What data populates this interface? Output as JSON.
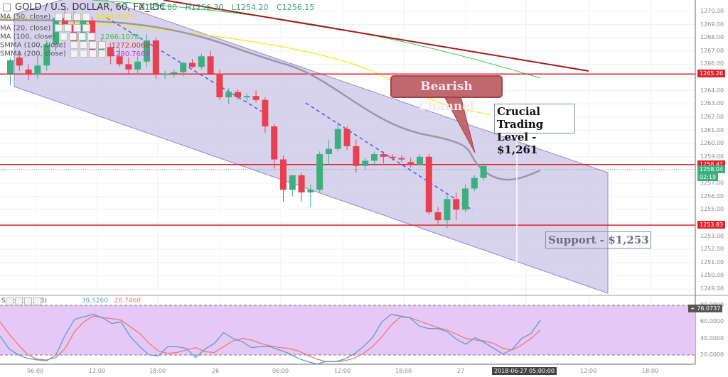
{
  "header": {
    "symbol_title": "GOLD / U.S. DOLLAR, 60, FX_IDC",
    "ohlc": {
      "open": "O1254.80",
      "high": "H1256.30",
      "low": "L1254.20",
      "close": "C1256.15"
    }
  },
  "indicators": [
    {
      "label": "MA (50, close)",
      "value": "1264.4076",
      "color": "#f0e000"
    },
    {
      "label": "MA (20, close)",
      "value": "",
      "color": "#999999"
    },
    {
      "label": "MA (100, close)",
      "value": "1266.1078",
      "color": "#33cc33"
    },
    {
      "label": "SMMA (100, close)",
      "value": "1272.0060",
      "color": "#cc3333"
    },
    {
      "label": "SMMA (200, close)",
      "value": "1280.7663",
      "color": "#cc33cc"
    }
  ],
  "price_axis": {
    "ticks": [
      "1270.00",
      "1269.00",
      "1268.00",
      "1267.00",
      "1266.00",
      "1264.00",
      "1263.00",
      "1262.00",
      "1261.00",
      "1260.00",
      "1259.00",
      "1257.00",
      "1256.00",
      "1255.00",
      "1253.00",
      "1252.00",
      "1251.00",
      "1250.00",
      "1249.00"
    ],
    "badges": [
      {
        "label": "1265.26",
        "color": "#e0222a"
      },
      {
        "label": "1258.41",
        "color": "#e0222a"
      },
      {
        "label": "1258.04",
        "color": "#3daf7e"
      },
      {
        "label": "02:19",
        "color": "#3daf7e"
      },
      {
        "label": "1253.83",
        "color": "#e0222a"
      }
    ]
  },
  "time_axis": {
    "ticks": [
      "06:00",
      "12:00",
      "18:00",
      "26",
      "06:00",
      "12:00",
      "18:00",
      "27",
      "12:00",
      "18:00"
    ],
    "crosshair_label": "2018-06-27 05:00:00"
  },
  "annotations": {
    "bearish_channel": "Bearish Channel",
    "crucial_level_line1": "Crucial Trading",
    "crucial_level_line2": "Level - $1,261",
    "support": "Support - $1,253"
  },
  "stoch": {
    "label": "Stoch (8, 3, 3)",
    "k_value": "39.5260",
    "d_value": "28.7468",
    "axis_ticks": [
      "80.0000",
      "60.0000",
      "40.0000",
      "20.0000"
    ],
    "badge": "76.0737"
  },
  "colors": {
    "bull": "#3daf7e",
    "bear": "#e8404f",
    "channel_fill": "#c8c0e4",
    "hline": "#e0222a",
    "stoch_bg": "#e6c8f7",
    "k_line": "#5b9bd5",
    "d_line": "#f07a6a"
  },
  "chart_data": {
    "type": "candlestick",
    "title": "GOLD / U.S. DOLLAR, 60, FX_IDC",
    "timeframe": "60",
    "x_ticks": [
      "06:00",
      "12:00",
      "18:00",
      "26",
      "06:00",
      "12:00",
      "18:00",
      "27",
      "12:00",
      "18:00"
    ],
    "ylim": [
      1248.5,
      1270.5
    ],
    "horizontal_levels": [
      1265.26,
      1258.41,
      1253.83
    ],
    "last_price": 1258.04,
    "candles": [
      {
        "o": 1265.3,
        "h": 1266.5,
        "l": 1264.4,
        "c": 1266.3
      },
      {
        "o": 1266.5,
        "h": 1267.0,
        "l": 1265.5,
        "c": 1265.9
      },
      {
        "o": 1265.6,
        "h": 1266.0,
        "l": 1264.8,
        "c": 1265.2
      },
      {
        "o": 1265.2,
        "h": 1266.6,
        "l": 1264.9,
        "c": 1265.9
      },
      {
        "o": 1265.9,
        "h": 1267.8,
        "l": 1265.5,
        "c": 1267.5
      },
      {
        "o": 1267.5,
        "h": 1269.9,
        "l": 1267.0,
        "c": 1269.5
      },
      {
        "o": 1269.5,
        "h": 1270.2,
        "l": 1268.6,
        "c": 1269.0
      },
      {
        "o": 1269.0,
        "h": 1270.0,
        "l": 1267.4,
        "c": 1267.5
      },
      {
        "o": 1267.5,
        "h": 1269.5,
        "l": 1267.0,
        "c": 1269.3
      },
      {
        "o": 1269.3,
        "h": 1269.6,
        "l": 1266.8,
        "c": 1267.1
      },
      {
        "o": 1267.1,
        "h": 1268.0,
        "l": 1266.6,
        "c": 1267.3
      },
      {
        "o": 1267.3,
        "h": 1267.6,
        "l": 1266.0,
        "c": 1266.6
      },
      {
        "o": 1266.6,
        "h": 1267.2,
        "l": 1265.8,
        "c": 1266.0
      },
      {
        "o": 1266.0,
        "h": 1266.5,
        "l": 1265.2,
        "c": 1265.6
      },
      {
        "o": 1265.6,
        "h": 1266.6,
        "l": 1265.2,
        "c": 1266.2
      },
      {
        "o": 1266.2,
        "h": 1268.3,
        "l": 1265.8,
        "c": 1267.8
      },
      {
        "o": 1267.8,
        "h": 1268.0,
        "l": 1264.9,
        "c": 1265.2
      },
      {
        "o": 1265.2,
        "h": 1265.5,
        "l": 1264.9,
        "c": 1265.3
      },
      {
        "o": 1265.3,
        "h": 1265.6,
        "l": 1265.0,
        "c": 1265.4
      },
      {
        "o": 1265.4,
        "h": 1266.2,
        "l": 1265.1,
        "c": 1266.1
      },
      {
        "o": 1266.1,
        "h": 1266.4,
        "l": 1265.7,
        "c": 1265.8
      },
      {
        "o": 1265.8,
        "h": 1266.8,
        "l": 1265.6,
        "c": 1266.6
      },
      {
        "o": 1266.6,
        "h": 1267.0,
        "l": 1265.2,
        "c": 1265.3
      },
      {
        "o": 1265.3,
        "h": 1265.6,
        "l": 1263.3,
        "c": 1263.5
      },
      {
        "o": 1263.5,
        "h": 1264.2,
        "l": 1263.0,
        "c": 1263.9
      },
      {
        "o": 1263.9,
        "h": 1264.1,
        "l": 1263.3,
        "c": 1263.5
      },
      {
        "o": 1263.5,
        "h": 1263.8,
        "l": 1263.2,
        "c": 1263.6
      },
      {
        "o": 1263.6,
        "h": 1264.0,
        "l": 1263.1,
        "c": 1263.3
      },
      {
        "o": 1263.3,
        "h": 1263.5,
        "l": 1260.8,
        "c": 1261.3
      },
      {
        "o": 1261.3,
        "h": 1261.5,
        "l": 1258.1,
        "c": 1258.8
      },
      {
        "o": 1258.8,
        "h": 1259.1,
        "l": 1255.6,
        "c": 1256.5
      },
      {
        "o": 1256.5,
        "h": 1257.6,
        "l": 1256.0,
        "c": 1257.6
      },
      {
        "o": 1257.6,
        "h": 1257.8,
        "l": 1255.6,
        "c": 1256.3
      },
      {
        "o": 1256.3,
        "h": 1256.9,
        "l": 1255.2,
        "c": 1256.5
      },
      {
        "o": 1256.5,
        "h": 1259.4,
        "l": 1256.3,
        "c": 1259.2
      },
      {
        "o": 1259.2,
        "h": 1260.3,
        "l": 1258.4,
        "c": 1259.6
      },
      {
        "o": 1259.6,
        "h": 1261.6,
        "l": 1259.4,
        "c": 1261.1
      },
      {
        "o": 1261.1,
        "h": 1261.3,
        "l": 1259.5,
        "c": 1259.8
      },
      {
        "o": 1259.8,
        "h": 1260.3,
        "l": 1257.8,
        "c": 1258.3
      },
      {
        "o": 1258.3,
        "h": 1258.9,
        "l": 1258.0,
        "c": 1258.7
      },
      {
        "o": 1258.7,
        "h": 1259.4,
        "l": 1258.3,
        "c": 1259.2
      },
      {
        "o": 1259.2,
        "h": 1259.4,
        "l": 1258.5,
        "c": 1259.0
      },
      {
        "o": 1259.0,
        "h": 1259.2,
        "l": 1258.7,
        "c": 1258.9
      },
      {
        "o": 1258.9,
        "h": 1259.1,
        "l": 1258.6,
        "c": 1258.8
      },
      {
        "o": 1258.6,
        "h": 1258.9,
        "l": 1258.2,
        "c": 1258.4
      },
      {
        "o": 1258.4,
        "h": 1259.2,
        "l": 1258.3,
        "c": 1259.0
      },
      {
        "o": 1259.0,
        "h": 1259.2,
        "l": 1254.6,
        "c": 1254.8
      },
      {
        "o": 1254.8,
        "h": 1255.2,
        "l": 1253.9,
        "c": 1254.2
      },
      {
        "o": 1254.2,
        "h": 1256.1,
        "l": 1253.6,
        "c": 1255.8
      },
      {
        "o": 1255.8,
        "h": 1256.3,
        "l": 1254.2,
        "c": 1255.0
      },
      {
        "o": 1255.0,
        "h": 1256.9,
        "l": 1254.8,
        "c": 1256.6
      },
      {
        "o": 1256.6,
        "h": 1257.6,
        "l": 1256.4,
        "c": 1257.4
      },
      {
        "o": 1257.4,
        "h": 1258.5,
        "l": 1257.2,
        "c": 1258.3
      }
    ],
    "stochastic": {
      "name": "Stoch (8, 3, 3)",
      "ylim": [
        0,
        100
      ],
      "levels": [
        80,
        20
      ],
      "k": [
        43,
        27,
        20,
        16,
        14,
        13,
        20,
        44,
        63,
        66,
        69,
        65,
        58,
        60,
        42,
        30,
        20,
        19,
        30,
        30,
        28,
        17,
        27,
        34,
        47,
        40,
        36,
        29,
        30,
        30,
        26,
        22,
        16,
        12,
        9,
        12,
        12,
        15,
        21,
        30,
        41,
        60,
        69,
        67,
        65,
        55,
        52,
        52,
        48,
        39,
        33,
        41,
        35,
        28,
        21,
        27,
        40,
        46,
        62
      ],
      "d": [
        60,
        45,
        32,
        20,
        15,
        14,
        17,
        28,
        48,
        60,
        67,
        65,
        64,
        62,
        54,
        46,
        34,
        25,
        22,
        23,
        26,
        29,
        24,
        23,
        30,
        37,
        40,
        38,
        34,
        31,
        29,
        28,
        25,
        20,
        15,
        12,
        12,
        13,
        16,
        22,
        30,
        42,
        56,
        66,
        65,
        61,
        57,
        53,
        50,
        45,
        40,
        38,
        37,
        34,
        28,
        26,
        32,
        40,
        50
      ],
      "k_last": 39.526,
      "d_last": 28.7468
    }
  }
}
